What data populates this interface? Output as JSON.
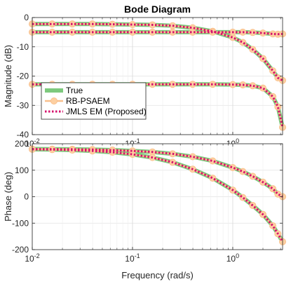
{
  "chart_data": [
    {
      "type": "line",
      "title": "Bode Diagram",
      "ylabel": "Magnitude (dB)",
      "xlabel": "",
      "x_scale": "log",
      "xlim": [
        0.01,
        3.14
      ],
      "ylim": [
        -40,
        0
      ],
      "yticks": [
        0,
        -10,
        -20,
        -30,
        -40
      ],
      "yticklabels": [
        "0",
        "-10",
        "-20",
        "-30",
        "-40"
      ],
      "xticks": [
        0.01,
        0.1,
        1
      ],
      "xticklabels": [
        "10^-2",
        "10^-1",
        "10^0"
      ],
      "grid": true,
      "legend": {
        "placement": "lower-left",
        "entries": [
          "True",
          "RB-PSAEM",
          "JMLS EM (Proposed)"
        ]
      },
      "colors": {
        "True": "#7dc97d",
        "RB-PSAEM": "#f9c08c",
        "JMLS EM (Proposed)": "#d6136e"
      },
      "curves": [
        {
          "x": [
            0.01,
            0.0158,
            0.0251,
            0.0398,
            0.0631,
            0.1,
            0.158,
            0.251,
            0.398,
            0.631,
            1.0,
            1.26,
            1.58,
            2.0,
            2.51,
            2.82,
            3.14
          ],
          "y": [
            -2.2,
            -2.2,
            -2.2,
            -2.2,
            -2.3,
            -2.4,
            -2.5,
            -2.8,
            -3.5,
            -4.7,
            -6.8,
            -8.5,
            -10.9,
            -14.0,
            -18.2,
            -20.6,
            -21.5
          ]
        },
        {
          "x": [
            0.01,
            0.0158,
            0.0251,
            0.0398,
            0.0631,
            0.1,
            0.158,
            0.251,
            0.398,
            0.631,
            1.0,
            1.26,
            1.58,
            2.0,
            2.51,
            2.82,
            3.14
          ],
          "y": [
            -5.0,
            -5.0,
            -5.0,
            -5.0,
            -5.0,
            -5.0,
            -5.0,
            -5.0,
            -5.0,
            -5.0,
            -5.0,
            -5.0,
            -5.1,
            -5.3,
            -5.6,
            -5.7,
            -5.6
          ]
        },
        {
          "x": [
            0.01,
            0.0158,
            0.0251,
            0.0398,
            0.0631,
            0.1,
            0.158,
            0.251,
            0.398,
            0.631,
            1.0,
            1.26,
            1.58,
            2.0,
            2.51,
            2.82,
            3.14
          ],
          "y": [
            -22.8,
            -22.8,
            -22.8,
            -22.8,
            -22.8,
            -22.8,
            -22.8,
            -22.8,
            -22.8,
            -22.8,
            -22.9,
            -23.0,
            -23.3,
            -24.1,
            -27.0,
            -30.5,
            -37.5
          ]
        }
      ]
    },
    {
      "type": "line",
      "title": "",
      "ylabel": "Phase (deg)",
      "xlabel": "Frequency (rad/s)",
      "x_scale": "log",
      "xlim": [
        0.01,
        3.14
      ],
      "ylim": [
        -200,
        200
      ],
      "yticks": [
        200,
        100,
        0,
        -100,
        -200
      ],
      "yticklabels": [
        "200",
        "100",
        "0",
        "-100",
        "-200"
      ],
      "xticks": [
        0.01,
        0.1,
        1
      ],
      "xticklabels": [
        "10^-2",
        "10^-1",
        "10^0"
      ],
      "grid": true,
      "curves": [
        {
          "x": [
            0.01,
            0.0158,
            0.0251,
            0.0398,
            0.0631,
            0.1,
            0.158,
            0.251,
            0.398,
            0.631,
            1.0,
            1.26,
            1.58,
            2.0,
            2.51,
            2.82,
            3.14
          ],
          "y": [
            180,
            179.5,
            179,
            178,
            176,
            173,
            169,
            162,
            151,
            135,
            110,
            95,
            77,
            55,
            30,
            10,
            0
          ]
        },
        {
          "x": [
            0.01,
            0.0158,
            0.0251,
            0.0398,
            0.0631,
            0.1,
            0.158,
            0.251,
            0.398,
            0.631,
            1.0,
            1.26,
            1.58,
            2.0,
            2.51,
            2.82,
            3.14
          ],
          "y": [
            179,
            178,
            176,
            173,
            168,
            160,
            148,
            130,
            104,
            70,
            25,
            -3,
            -33,
            -67,
            -110,
            -140,
            -170
          ]
        }
      ]
    }
  ]
}
